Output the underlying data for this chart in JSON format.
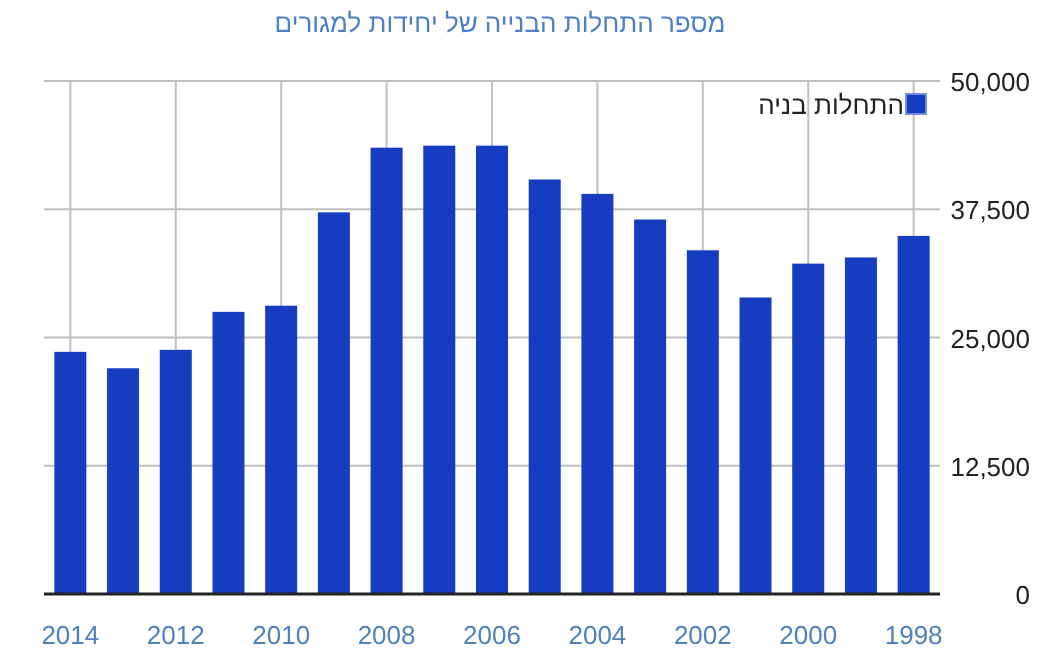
{
  "chart_data": {
    "type": "bar",
    "title": "מספר התחלות הבנייה של יחידות למגורים",
    "categories": [
      "2014",
      null,
      "2012",
      null,
      "2010",
      null,
      "2008",
      null,
      "2006",
      null,
      "2004",
      null,
      "2002",
      null,
      "2000",
      null,
      "1998"
    ],
    "series": [
      {
        "name": "התחלות בניה",
        "color": "#163cbf",
        "values": [
          23600,
          22000,
          23800,
          27500,
          28100,
          37200,
          43500,
          43700,
          43700,
          40400,
          39000,
          36500,
          33500,
          28900,
          32200,
          32800,
          34900
        ]
      }
    ],
    "ylim": [
      0,
      50000
    ],
    "yticks": [
      {
        "value": 0,
        "label": "0"
      },
      {
        "value": 12500,
        "label": "12,500"
      },
      {
        "value": 25000,
        "label": "25,000"
      },
      {
        "value": 37500,
        "label": "37,500"
      },
      {
        "value": 50000,
        "label": "50,000"
      }
    ],
    "grid": true,
    "legend": "top right"
  }
}
